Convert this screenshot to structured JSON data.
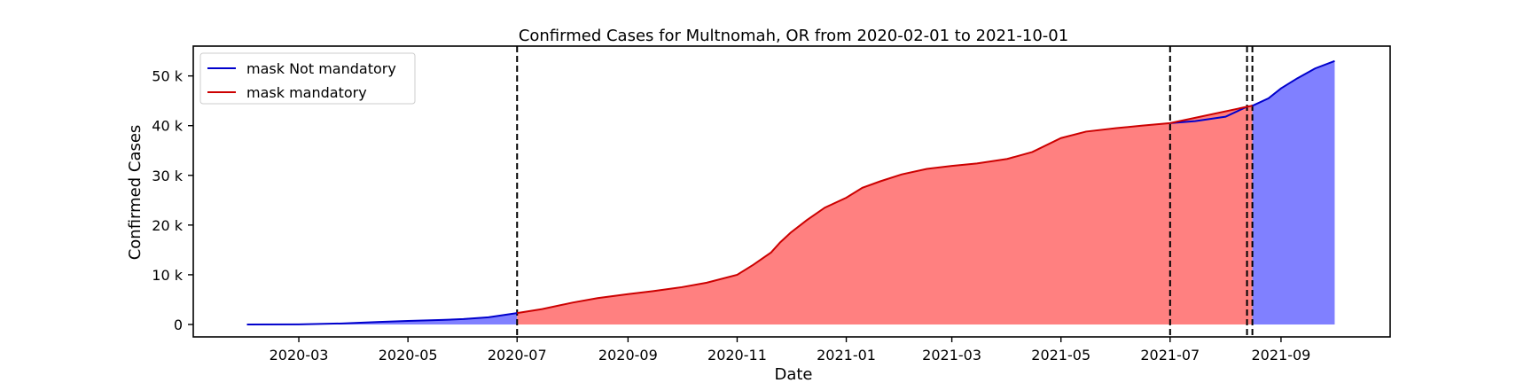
{
  "chart_data": {
    "type": "area",
    "title": "Confirmed Cases for Multnomah, OR from 2020-02-01 to 2021-10-01",
    "xlabel": "Date",
    "ylabel": "Confirmed Cases",
    "xlim": [
      "2020-01-02",
      "2021-11-01"
    ],
    "ylim": [
      -2500,
      56000
    ],
    "x_ticks": [
      {
        "date": "2020-03-01",
        "label": "2020-03"
      },
      {
        "date": "2020-05-01",
        "label": "2020-05"
      },
      {
        "date": "2020-07-01",
        "label": "2020-07"
      },
      {
        "date": "2020-09-01",
        "label": "2020-09"
      },
      {
        "date": "2020-11-01",
        "label": "2020-11"
      },
      {
        "date": "2021-01-01",
        "label": "2021-01"
      },
      {
        "date": "2021-03-01",
        "label": "2021-03"
      },
      {
        "date": "2021-05-01",
        "label": "2021-05"
      },
      {
        "date": "2021-07-01",
        "label": "2021-07"
      },
      {
        "date": "2021-09-01",
        "label": "2021-09"
      }
    ],
    "y_ticks": [
      {
        "value": 0,
        "label": "0"
      },
      {
        "value": 10000,
        "label": "10 k"
      },
      {
        "value": 20000,
        "label": "20 k"
      },
      {
        "value": 30000,
        "label": "30 k"
      },
      {
        "value": 40000,
        "label": "40 k"
      },
      {
        "value": 50000,
        "label": "50 k"
      }
    ],
    "legend": {
      "placement": "upper-left",
      "entries": [
        {
          "label": "mask Not mandatory",
          "color": "#0000cc"
        },
        {
          "label": "mask mandatory",
          "color": "#cc0000"
        }
      ]
    },
    "vlines": [
      "2020-07-01",
      "2021-07-01",
      "2021-08-13",
      "2021-08-16"
    ],
    "colors": {
      "not_mandatory_line": "#0000cc",
      "not_mandatory_fill": "#8080ff",
      "mandatory_line": "#cc0000",
      "mandatory_fill": "#ff8080"
    },
    "series": [
      {
        "mandatory": false,
        "points": [
          [
            "2020-02-01",
            0
          ],
          [
            "2020-03-01",
            30
          ],
          [
            "2020-03-25",
            200
          ],
          [
            "2020-04-15",
            500
          ],
          [
            "2020-05-01",
            700
          ],
          [
            "2020-05-20",
            900
          ],
          [
            "2020-06-01",
            1100
          ],
          [
            "2020-06-15",
            1450
          ],
          [
            "2020-07-01",
            2300
          ]
        ]
      },
      {
        "mandatory": true,
        "points": [
          [
            "2020-07-01",
            2300
          ],
          [
            "2020-07-15",
            3100
          ],
          [
            "2020-08-01",
            4400
          ],
          [
            "2020-08-15",
            5300
          ],
          [
            "2020-09-01",
            6100
          ],
          [
            "2020-09-15",
            6700
          ],
          [
            "2020-10-01",
            7500
          ],
          [
            "2020-10-15",
            8400
          ],
          [
            "2020-11-01",
            10000
          ],
          [
            "2020-11-10",
            12000
          ],
          [
            "2020-11-20",
            14500
          ],
          [
            "2020-11-25",
            16500
          ],
          [
            "2020-12-01",
            18500
          ],
          [
            "2020-12-10",
            21000
          ],
          [
            "2020-12-20",
            23500
          ],
          [
            "2021-01-01",
            25500
          ],
          [
            "2021-01-10",
            27500
          ],
          [
            "2021-01-20",
            28800
          ],
          [
            "2021-02-01",
            30200
          ],
          [
            "2021-02-15",
            31300
          ],
          [
            "2021-03-01",
            31900
          ],
          [
            "2021-03-15",
            32400
          ],
          [
            "2021-04-01",
            33300
          ],
          [
            "2021-04-15",
            34700
          ],
          [
            "2021-05-01",
            37500
          ],
          [
            "2021-05-15",
            38800
          ],
          [
            "2021-06-01",
            39500
          ],
          [
            "2021-06-15",
            40000
          ],
          [
            "2021-07-01",
            40500
          ]
        ]
      },
      {
        "mandatory": false,
        "points": [
          [
            "2021-07-01",
            40500
          ],
          [
            "2021-07-15",
            40900
          ],
          [
            "2021-08-01",
            41800
          ],
          [
            "2021-08-13",
            43800
          ]
        ]
      },
      {
        "mandatory": true,
        "points": [
          [
            "2021-07-01",
            40500
          ],
          [
            "2021-08-13",
            43800
          ],
          [
            "2021-08-16",
            44000
          ]
        ]
      },
      {
        "mandatory": false,
        "points": [
          [
            "2021-08-16",
            44000
          ],
          [
            "2021-08-25",
            45500
          ],
          [
            "2021-09-01",
            47500
          ],
          [
            "2021-09-10",
            49500
          ],
          [
            "2021-09-20",
            51500
          ],
          [
            "2021-10-01",
            53000
          ]
        ]
      }
    ]
  }
}
